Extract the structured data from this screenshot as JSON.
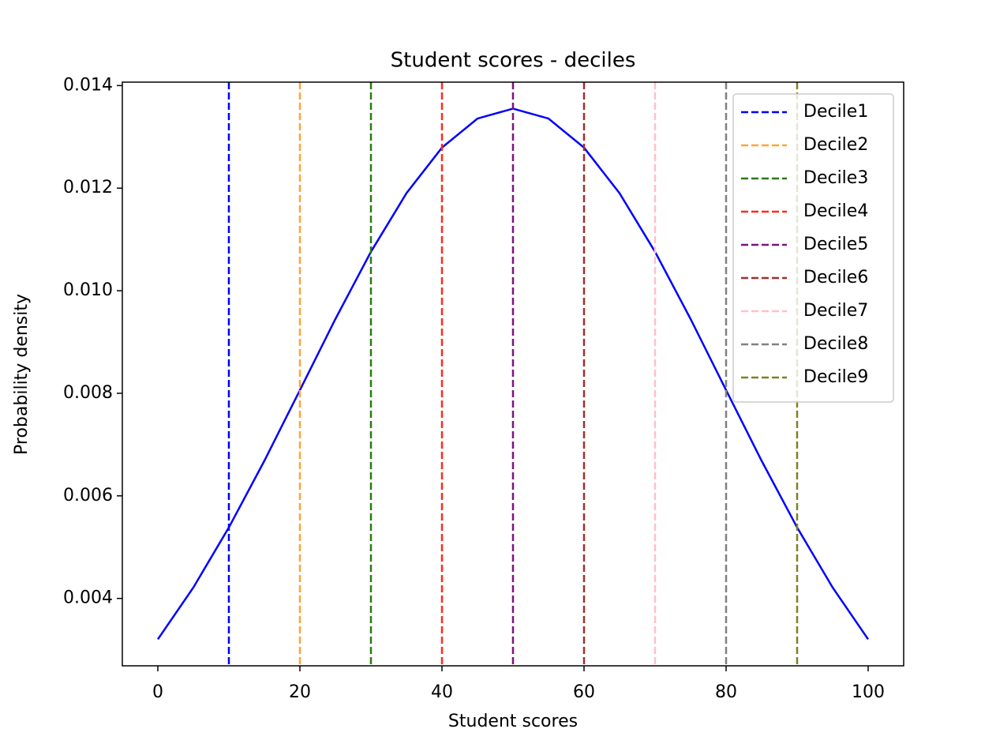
{
  "chart_data": {
    "type": "line",
    "title": "Student scores - deciles",
    "xlabel": "Student scores",
    "ylabel": "Probability density",
    "x": [
      0,
      5,
      10,
      15,
      20,
      25,
      30,
      35,
      40,
      45,
      50,
      55,
      60,
      65,
      70,
      75,
      80,
      85,
      90,
      95,
      100
    ],
    "series": [
      {
        "color": "#0000ff",
        "values": [
          0.003203,
          0.004213,
          0.005384,
          0.006684,
          0.008062,
          0.009449,
          0.010759,
          0.011901,
          0.01279,
          0.013357,
          0.01355,
          0.013357,
          0.01279,
          0.011901,
          0.010759,
          0.009449,
          0.008062,
          0.006684,
          0.005384,
          0.004213,
          0.003203
        ]
      }
    ],
    "vlines": [
      {
        "name": "Decile1",
        "color": "#0000ff",
        "x": 10
      },
      {
        "name": "Decile2",
        "color": "#ffa533",
        "x": 20
      },
      {
        "name": "Decile3",
        "color": "#2a7a12",
        "x": 30
      },
      {
        "name": "Decile4",
        "color": "#ff2a1a",
        "x": 40
      },
      {
        "name": "Decile5",
        "color": "#7d1380",
        "x": 50
      },
      {
        "name": "Decile6",
        "color": "#a0302b",
        "x": 60
      },
      {
        "name": "Decile7",
        "color": "#ffc0cb",
        "x": 70
      },
      {
        "name": "Decile8",
        "color": "#808080",
        "x": 80
      },
      {
        "name": "Decile9",
        "color": "#808020",
        "x": 90
      }
    ],
    "xlim": [
      -5,
      105
    ],
    "xticks": [
      0,
      20,
      40,
      60,
      80,
      100
    ],
    "ylim": [
      0.002686,
      0.014067
    ],
    "yticks": [
      0.004,
      0.006,
      0.008,
      {
        "value": 0.01,
        "label": "0.010"
      },
      0.012,
      0.014
    ],
    "legend": "upper right",
    "grid": false
  }
}
